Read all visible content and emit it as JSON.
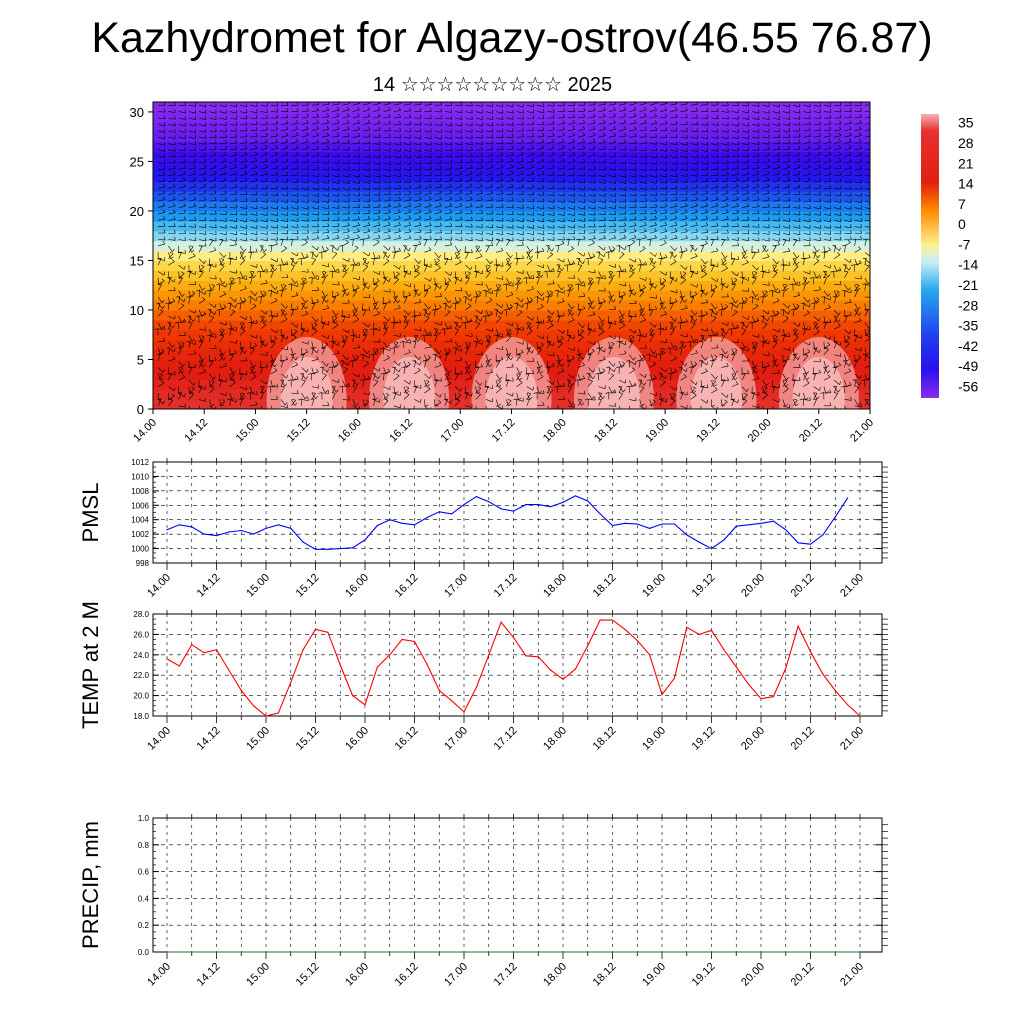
{
  "title": "Kazhydromet for Algazy-ostrov(46.55 76.87)",
  "subtitle": "14 ☆☆☆☆☆☆☆☆☆ 2025",
  "colors": {
    "pmsl_line": "#0000ff",
    "temp_line": "#ff0000",
    "precip_line": "#2e6b2e"
  },
  "chart_data": [
    {
      "type": "heatmap",
      "panel": "upper-air temperature cross-section with wind barbs",
      "x_ticks": [
        "14.00",
        "14.12",
        "15.00",
        "15.12",
        "16.00",
        "16.12",
        "17.00",
        "17.12",
        "18.00",
        "18.12",
        "19.00",
        "19.12",
        "20.00",
        "20.12",
        "21.00"
      ],
      "y_ticks": [
        0,
        5,
        10,
        15,
        20,
        25,
        30
      ],
      "ylim": [
        0,
        31
      ],
      "colorbar": {
        "labels": [
          35,
          28,
          21,
          14,
          7,
          0,
          -7,
          -14,
          -21,
          -28,
          -35,
          -42,
          -49,
          -56
        ],
        "range": [
          -60,
          38
        ]
      },
      "level_temps": [
        [
          0,
          24
        ],
        [
          3,
          22
        ],
        [
          6,
          18
        ],
        [
          9,
          12
        ],
        [
          12,
          3
        ],
        [
          15,
          -8
        ],
        [
          18,
          -22
        ],
        [
          21,
          -36
        ],
        [
          24,
          -52
        ],
        [
          27,
          -58
        ],
        [
          31,
          -60
        ]
      ],
      "surface_maxima_x_hours": [
        36,
        60,
        84,
        108,
        132,
        156
      ]
    },
    {
      "type": "line",
      "ylabel": "PMSL",
      "x_ticks": [
        "14.00",
        "14.12",
        "15.00",
        "15.12",
        "16.00",
        "16.12",
        "17.00",
        "17.12",
        "18.00",
        "18.12",
        "19.00",
        "19.12",
        "20.00",
        "20.12",
        "21.00"
      ],
      "y_ticks": [
        "998",
        "1000",
        "1002",
        "1004",
        "1006",
        "1008",
        "1010",
        "1012"
      ],
      "ylim": [
        998,
        1012
      ],
      "x_hours": [
        0,
        3,
        6,
        9,
        12,
        15,
        18,
        21,
        24,
        27,
        30,
        33,
        36,
        39,
        42,
        45,
        48,
        51,
        54,
        57,
        60,
        63,
        66,
        69,
        72,
        75,
        78,
        81,
        84,
        87,
        90,
        93,
        96,
        99,
        102,
        105,
        108,
        111,
        114,
        117,
        120,
        123,
        126,
        129,
        132,
        135,
        138,
        141,
        144,
        147,
        150,
        153,
        156,
        159,
        162,
        165
      ],
      "values": [
        1002.6,
        1003.3,
        1003.0,
        1002.0,
        1001.8,
        1002.3,
        1002.5,
        1002.0,
        1002.8,
        1003.3,
        1002.8,
        1000.9,
        999.9,
        999.9,
        1000.0,
        1000.1,
        1001.2,
        1003.2,
        1004.0,
        1003.5,
        1003.3,
        1004.3,
        1005.1,
        1004.8,
        1006.1,
        1007.2,
        1006.5,
        1005.5,
        1005.2,
        1006.1,
        1006.1,
        1005.8,
        1006.4,
        1007.3,
        1006.6,
        1004.8,
        1003.2,
        1003.5,
        1003.4,
        1002.8,
        1003.4,
        1003.4,
        1001.9,
        1000.9,
        1000.0,
        1001.2,
        1003.1,
        1003.3,
        1003.5,
        1003.8,
        1002.6,
        1000.8,
        1000.6,
        1001.9,
        1004.4,
        1007.0
      ]
    },
    {
      "type": "line",
      "ylabel": "TEMP at 2 M",
      "x_ticks": [
        "14.00",
        "14.12",
        "15.00",
        "15.12",
        "16.00",
        "16.12",
        "17.00",
        "17.12",
        "18.00",
        "18.12",
        "19.00",
        "19.12",
        "20.00",
        "20.12",
        "21.00"
      ],
      "y_ticks": [
        "18.0",
        "20.0",
        "22.0",
        "24.0",
        "26.0",
        "28.0"
      ],
      "ylim": [
        18,
        28
      ],
      "x_hours": [
        0,
        3,
        6,
        9,
        12,
        15,
        18,
        21,
        24,
        27,
        30,
        33,
        36,
        39,
        42,
        45,
        48,
        51,
        54,
        57,
        60,
        63,
        66,
        69,
        72,
        75,
        78,
        81,
        84,
        87,
        90,
        93,
        96,
        99,
        102,
        105,
        108,
        111,
        114,
        117,
        120,
        123,
        126,
        129,
        132,
        135,
        138,
        141,
        144,
        147,
        150,
        153,
        156,
        159,
        162,
        165,
        168
      ],
      "values": [
        23.6,
        22.9,
        25.0,
        24.2,
        24.5,
        22.5,
        20.5,
        19.0,
        18.0,
        18.3,
        21.3,
        24.5,
        26.5,
        26.2,
        23.0,
        20.0,
        19.1,
        22.8,
        24.0,
        25.5,
        25.3,
        23.1,
        20.5,
        19.5,
        18.4,
        20.8,
        24.0,
        27.2,
        25.7,
        23.9,
        23.8,
        22.5,
        21.6,
        22.6,
        24.9,
        27.4,
        27.4,
        26.5,
        25.4,
        24.0,
        20.1,
        21.7,
        26.7,
        26.0,
        26.4,
        24.5,
        22.8,
        21.1,
        19.7,
        19.9,
        22.7,
        26.8,
        24.3,
        22.1,
        20.5,
        19.1,
        18.0
      ]
    },
    {
      "type": "line",
      "ylabel": "PRECIP, mm",
      "x_ticks": [
        "14.00",
        "14.12",
        "15.00",
        "15.12",
        "16.00",
        "16.12",
        "17.00",
        "17.12",
        "18.00",
        "18.12",
        "19.00",
        "19.12",
        "20.00",
        "20.12",
        "21.00"
      ],
      "y_ticks": [
        "0.0",
        "0.2",
        "0.4",
        "0.6",
        "0.8",
        "1.0"
      ],
      "ylim": [
        0,
        1
      ],
      "x_hours": [
        0,
        168
      ],
      "values": [
        0,
        0
      ]
    }
  ]
}
